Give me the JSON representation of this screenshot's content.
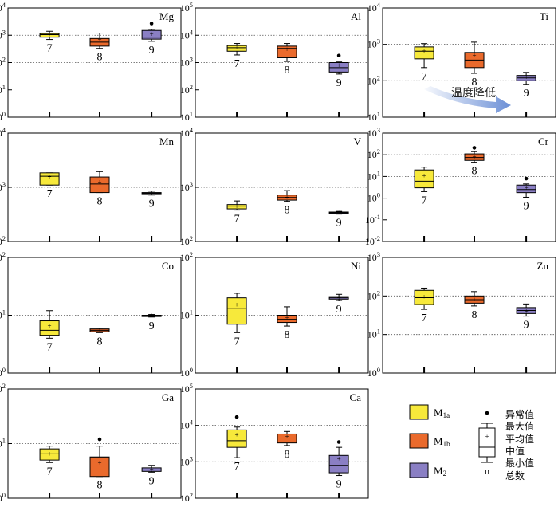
{
  "colors": {
    "M1a": "#f7e93b",
    "M1b": "#ea6a2c",
    "M2": "#8a7fc4",
    "arrow": "#6b8fd6"
  },
  "legend": {
    "items": [
      {
        "key": "M1a",
        "label_main": "M",
        "label_sub": "1a",
        "color": "#f7e93b"
      },
      {
        "key": "M1b",
        "label_main": "M",
        "label_sub": "1b",
        "color": "#ea6a2c"
      },
      {
        "key": "M2",
        "label_main": "M",
        "label_sub": "2",
        "color": "#8a7fc4"
      }
    ],
    "key_labels": {
      "outlier": "异常值",
      "max": "最大值",
      "mean": "平均值",
      "median": "中值",
      "min": "最小值",
      "count": "总数",
      "n": "n"
    }
  },
  "annotation": {
    "text": "温度降低"
  },
  "chart_data": [
    {
      "type": "box",
      "element": "Mg",
      "scale": "log",
      "ylim": [
        1,
        10000
      ],
      "tick_exponents": [
        0,
        1,
        2,
        3,
        4
      ],
      "gridlines": [
        100,
        1000
      ],
      "boxes": [
        {
          "group": "M1a",
          "n": "7",
          "min": 700,
          "q1": 850,
          "median": 1050,
          "q3": 1150,
          "max": 1400,
          "mean": 1050,
          "outliers": []
        },
        {
          "group": "M1b",
          "n": "8",
          "min": 330,
          "q1": 400,
          "median": 560,
          "q3": 760,
          "max": 1200,
          "mean": 680,
          "outliers": []
        },
        {
          "group": "M2",
          "n": "9",
          "min": 600,
          "q1": 720,
          "median": 850,
          "q3": 1500,
          "max": 1650,
          "mean": 1100,
          "outliers": [
            2700
          ]
        }
      ]
    },
    {
      "type": "box",
      "element": "Al",
      "scale": "log",
      "ylim": [
        10,
        100000
      ],
      "tick_exponents": [
        1,
        2,
        3,
        4,
        5
      ],
      "gridlines": [
        1000,
        10000
      ],
      "boxes": [
        {
          "group": "M1a",
          "n": "7",
          "min": 1900,
          "q1": 2600,
          "median": 3500,
          "q3": 4200,
          "max": 5000,
          "mean": 3500,
          "outliers": []
        },
        {
          "group": "M1b",
          "n": "8",
          "min": 1100,
          "q1": 1500,
          "median": 3300,
          "q3": 4000,
          "max": 5000,
          "mean": 3000,
          "outliers": []
        },
        {
          "group": "M2",
          "n": "9",
          "min": 380,
          "q1": 450,
          "median": 650,
          "q3": 1000,
          "max": 1050,
          "mean": 780,
          "outliers": [
            1800
          ]
        }
      ]
    },
    {
      "type": "box",
      "element": "Ti",
      "scale": "log",
      "ylim": [
        10,
        10000
      ],
      "tick_exponents": [
        1,
        2,
        3,
        4
      ],
      "gridlines": [
        100,
        1000
      ],
      "boxes": [
        {
          "group": "M1a",
          "n": "7",
          "min": 230,
          "q1": 400,
          "median": 650,
          "q3": 850,
          "max": 1050,
          "mean": 650,
          "outliers": []
        },
        {
          "group": "M1b",
          "n": "8",
          "min": 160,
          "q1": 230,
          "median": 370,
          "q3": 600,
          "max": 1150,
          "mean": 500,
          "outliers": []
        },
        {
          "group": "M2",
          "n": "9",
          "min": 80,
          "q1": 100,
          "median": 120,
          "q3": 140,
          "max": 170,
          "mean": 125,
          "outliers": []
        }
      ]
    },
    {
      "type": "box",
      "element": "Mn",
      "scale": "log",
      "ylim": [
        100,
        10000
      ],
      "tick_exponents": [
        2,
        3,
        4
      ],
      "gridlines": [
        1000
      ],
      "boxes": [
        {
          "group": "M1a",
          "n": "7",
          "min": 1100,
          "q1": 1100,
          "median": 1600,
          "q3": 1850,
          "max": 1850,
          "mean": 1550,
          "outliers": []
        },
        {
          "group": "M1b",
          "n": "8",
          "min": 800,
          "q1": 800,
          "median": 1150,
          "q3": 1550,
          "max": 1950,
          "mean": 1250,
          "outliers": []
        },
        {
          "group": "M2",
          "n": "9",
          "min": 720,
          "q1": 760,
          "median": 780,
          "q3": 800,
          "max": 850,
          "mean": 780,
          "outliers": []
        }
      ]
    },
    {
      "type": "box",
      "element": "V",
      "scale": "log",
      "ylim": [
        100,
        10000
      ],
      "tick_exponents": [
        2,
        3,
        4
      ],
      "gridlines": [
        1000
      ],
      "boxes": [
        {
          "group": "M1a",
          "n": "7",
          "min": 380,
          "q1": 400,
          "median": 450,
          "q3": 480,
          "max": 560,
          "mean": 440,
          "outliers": []
        },
        {
          "group": "M1b",
          "n": "8",
          "min": 550,
          "q1": 580,
          "median": 650,
          "q3": 720,
          "max": 870,
          "mean": 660,
          "outliers": []
        },
        {
          "group": "M2",
          "n": "9",
          "min": 320,
          "q1": 330,
          "median": 340,
          "q3": 350,
          "max": 360,
          "mean": 340,
          "outliers": []
        }
      ]
    },
    {
      "type": "box",
      "element": "Cr",
      "scale": "log",
      "ylim": [
        0.01,
        1000
      ],
      "tick_exponents": [
        -2,
        -1,
        0,
        1,
        2,
        3
      ],
      "gridlines": [
        1,
        10,
        100
      ],
      "boxes": [
        {
          "group": "M1a",
          "n": "7",
          "min": 2,
          "q1": 3,
          "median": 6,
          "q3": 20,
          "max": 27,
          "mean": 11,
          "outliers": []
        },
        {
          "group": "M1b",
          "n": "8",
          "min": 45,
          "q1": 55,
          "median": 75,
          "q3": 110,
          "max": 140,
          "mean": 80,
          "outliers": [
            210
          ]
        },
        {
          "group": "M2",
          "n": "9",
          "min": 1.1,
          "q1": 1.8,
          "median": 2.5,
          "q3": 4,
          "max": 4.5,
          "mean": 3,
          "outliers": [
            8
          ]
        }
      ]
    },
    {
      "type": "box",
      "element": "Co",
      "scale": "log",
      "ylim": [
        1,
        100
      ],
      "tick_exponents": [
        0,
        1,
        2
      ],
      "gridlines": [
        10
      ],
      "boxes": [
        {
          "group": "M1a",
          "n": "7",
          "min": 4,
          "q1": 4.5,
          "median": 5.5,
          "q3": 8,
          "max": 12,
          "mean": 6.5,
          "outliers": []
        },
        {
          "group": "M1b",
          "n": "8",
          "min": 5,
          "q1": 5.2,
          "median": 5.5,
          "q3": 5.8,
          "max": 6,
          "mean": 5.5,
          "outliers": []
        },
        {
          "group": "M2",
          "n": "9",
          "min": 9.3,
          "q1": 9.5,
          "median": 9.8,
          "q3": 10,
          "max": 10.3,
          "mean": 9.8,
          "outliers": []
        }
      ]
    },
    {
      "type": "box",
      "element": "Ni",
      "scale": "log",
      "ylim": [
        1,
        100
      ],
      "tick_exponents": [
        0,
        1,
        2
      ],
      "gridlines": [
        10
      ],
      "boxes": [
        {
          "group": "M1a",
          "n": "7",
          "min": 5,
          "q1": 7,
          "median": 13,
          "q3": 20,
          "max": 24,
          "mean": 15,
          "outliers": []
        },
        {
          "group": "M1b",
          "n": "8",
          "min": 6.5,
          "q1": 7.5,
          "median": 8.5,
          "q3": 10,
          "max": 14,
          "mean": 9,
          "outliers": []
        },
        {
          "group": "M2",
          "n": "9",
          "min": 18,
          "q1": 19,
          "median": 20,
          "q3": 21,
          "max": 23,
          "mean": 20,
          "outliers": []
        }
      ]
    },
    {
      "type": "box",
      "element": "Zn",
      "scale": "log",
      "ylim": [
        1,
        1000
      ],
      "tick_exponents": [
        0,
        1,
        2,
        3
      ],
      "gridlines": [
        10,
        100
      ],
      "boxes": [
        {
          "group": "M1a",
          "n": "7",
          "min": 45,
          "q1": 60,
          "median": 90,
          "q3": 140,
          "max": 160,
          "mean": 95,
          "outliers": []
        },
        {
          "group": "M1b",
          "n": "8",
          "min": 55,
          "q1": 65,
          "median": 80,
          "q3": 100,
          "max": 130,
          "mean": 80,
          "outliers": []
        },
        {
          "group": "M2",
          "n": "9",
          "min": 30,
          "q1": 35,
          "median": 42,
          "q3": 50,
          "max": 62,
          "mean": 40,
          "outliers": []
        }
      ]
    },
    {
      "type": "box",
      "element": "Ga",
      "scale": "log",
      "ylim": [
        1,
        100
      ],
      "tick_exponents": [
        0,
        1,
        2
      ],
      "gridlines": [
        10
      ],
      "boxes": [
        {
          "group": "M1a",
          "n": "7",
          "min": 4.5,
          "q1": 5,
          "median": 6.5,
          "q3": 8,
          "max": 9,
          "mean": 6.5,
          "outliers": []
        },
        {
          "group": "M1b",
          "n": "8",
          "min": 2.5,
          "q1": 2.5,
          "median": 5.5,
          "q3": 5.7,
          "max": 9,
          "mean": 4.5,
          "outliers": [
            12
          ]
        },
        {
          "group": "M2",
          "n": "9",
          "min": 3,
          "q1": 3.1,
          "median": 3.3,
          "q3": 3.6,
          "max": 4,
          "mean": 3.4,
          "outliers": []
        }
      ]
    },
    {
      "type": "box",
      "element": "Ca",
      "scale": "log",
      "ylim": [
        100,
        100000
      ],
      "tick_exponents": [
        2,
        3,
        4,
        5
      ],
      "gridlines": [
        1000,
        10000
      ],
      "boxes": [
        {
          "group": "M1a",
          "n": "7",
          "min": 1300,
          "q1": 2500,
          "median": 3800,
          "q3": 7500,
          "max": 9000,
          "mean": 5500,
          "outliers": [
            17000
          ]
        },
        {
          "group": "M1b",
          "n": "8",
          "min": 2800,
          "q1": 3300,
          "median": 4500,
          "q3": 5800,
          "max": 6800,
          "mean": 4800,
          "outliers": []
        },
        {
          "group": "M2",
          "n": "9",
          "min": 420,
          "q1": 500,
          "median": 800,
          "q3": 1500,
          "max": 2500,
          "mean": 1200,
          "outliers": [
            3500
          ]
        }
      ]
    }
  ]
}
